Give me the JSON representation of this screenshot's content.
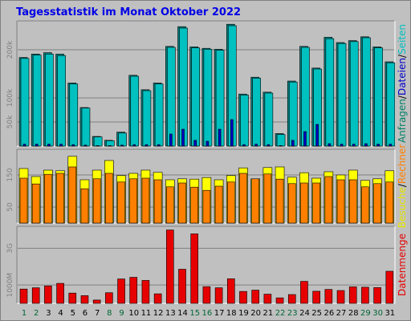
{
  "chart_data": {
    "type": "bar",
    "title": "Tagesstatistik im Monat Oktober 2022",
    "title_color": "#0000e6",
    "categories": [
      "1",
      "2",
      "3",
      "4",
      "5",
      "6",
      "7",
      "8",
      "9",
      "10",
      "11",
      "12",
      "13",
      "14",
      "15",
      "16",
      "17",
      "18",
      "19",
      "20",
      "21",
      "22",
      "23",
      "24",
      "25",
      "26",
      "27",
      "28",
      "29",
      "30",
      "31"
    ],
    "weekend_days": [
      "1",
      "2",
      "8",
      "9",
      "15",
      "16",
      "22",
      "23",
      "29",
      "30"
    ],
    "weekend_color": "#006633",
    "panels": [
      {
        "id": "requests",
        "ylim": [
          0,
          260000
        ],
        "yticks": [
          {
            "value": 50000,
            "label": "50k"
          },
          {
            "value": 100000,
            "label": "100k"
          },
          {
            "value": 200000,
            "label": "200k"
          }
        ],
        "side_labels": [
          {
            "text": "Anfragen",
            "color": "#008066"
          },
          {
            "text": "/",
            "color": "#000000"
          },
          {
            "text": "Dateien",
            "color": "#0000cc"
          },
          {
            "text": "/",
            "color": "#000000"
          },
          {
            "text": "Seiten",
            "color": "#00c0c0"
          }
        ],
        "series": [
          {
            "name": "Anfragen",
            "color": "#008080",
            "values": [
              184000,
              191000,
              194000,
              191000,
              131000,
              80000,
              20000,
              12000,
              29000,
              147000,
              117000,
              131000,
              207000,
              248000,
              206000,
              203000,
              201000,
              253000,
              108000,
              143000,
              112000,
              26000,
              135000,
              207000,
              162000,
              226000,
              215000,
              219000,
              227000,
              206000,
              175000
            ]
          },
          {
            "name": "Dateien",
            "color": "#00c0c0",
            "values": [
              182000,
              189000,
              191000,
              188000,
              129000,
              79000,
              19000,
              11000,
              27000,
              145000,
              115000,
              129000,
              205000,
              245000,
              204000,
              201000,
              199000,
              250000,
              106000,
              141000,
              110000,
              24000,
              133000,
              205000,
              160000,
              223000,
              213000,
              217000,
              225000,
              204000,
              173000
            ]
          },
          {
            "name": "Seiten",
            "color": "#0000cc",
            "values": [
              4000,
              4000,
              4000,
              4000,
              3000,
              2000,
              1000,
              1000,
              2000,
              3000,
              3000,
              3000,
              25000,
              35000,
              12000,
              10000,
              35000,
              55000,
              3000,
              4000,
              3000,
              1000,
              12000,
              30000,
              45000,
              5000,
              4000,
              4000,
              5000,
              4000,
              4000
            ]
          }
        ]
      },
      {
        "id": "visits",
        "ylim": [
          0,
          230
        ],
        "yticks": [
          {
            "value": 50,
            "label": "50"
          },
          {
            "value": 150,
            "label": "150"
          }
        ],
        "side_labels": [
          {
            "text": "Besuche",
            "color": "#e6e600"
          },
          {
            "text": "/",
            "color": "#000000"
          },
          {
            "text": "Rechner",
            "color": "#ff8000"
          }
        ],
        "series": [
          {
            "name": "Besuche",
            "color": "#ffff00",
            "values": [
              170,
              145,
              165,
              163,
              208,
              135,
              165,
              195,
              148,
              155,
              165,
              158,
              135,
              138,
              137,
              142,
              135,
              148,
              172,
              138,
              173,
              175,
              143,
              157,
              140,
              160,
              150,
              165,
              133,
              138,
              163
            ]
          },
          {
            "name": "Rechner",
            "color": "#ff8000",
            "values": [
              140,
              122,
              152,
              155,
              175,
              107,
              138,
              155,
              128,
              138,
              140,
              135,
              113,
              125,
              112,
              102,
              115,
              128,
              155,
              138,
              153,
              137,
              123,
              125,
              125,
              145,
              135,
              135,
              113,
              123,
              128
            ]
          }
        ]
      },
      {
        "id": "kbytes",
        "ylim": [
          0,
          4200
        ],
        "yticks": [
          {
            "value": 1000,
            "label": "1000M"
          },
          {
            "value": 3000,
            "label": "3G"
          }
        ],
        "side_labels": [
          {
            "text": "Datenmenge",
            "color": "#e60000"
          }
        ],
        "series": [
          {
            "name": "Datenmenge",
            "color": "#e60000",
            "values": [
              780,
              850,
              950,
              1090,
              560,
              420,
              180,
              580,
              1330,
              1420,
              1250,
              520,
              4000,
              1860,
              3790,
              910,
              850,
              1340,
              650,
              720,
              500,
              300,
              480,
              1200,
              660,
              760,
              700,
              900,
              880,
              860,
              1750
            ]
          }
        ]
      }
    ]
  }
}
